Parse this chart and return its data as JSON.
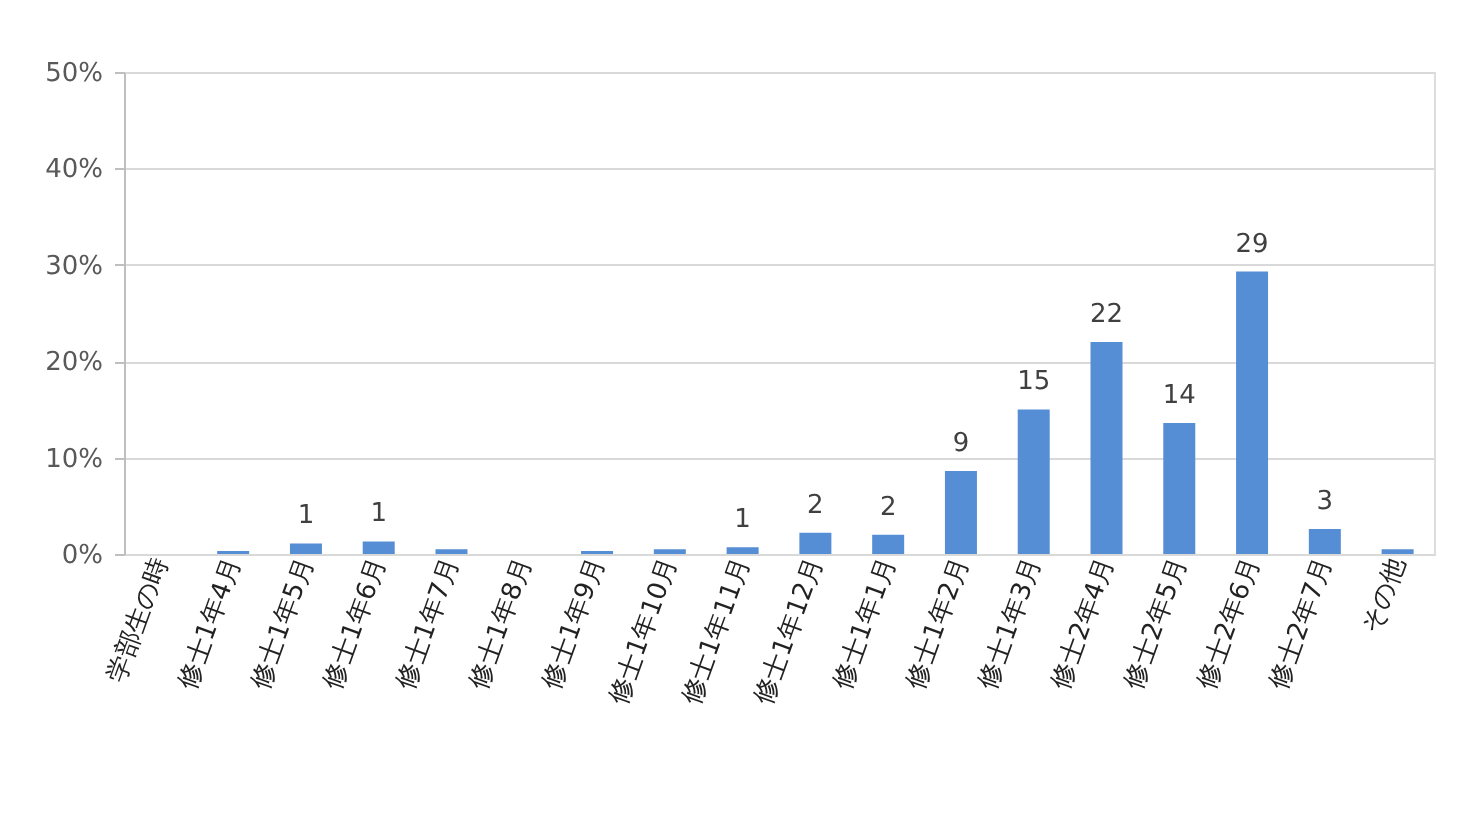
{
  "chart_data": {
    "type": "bar",
    "categories": [
      "学部生の時",
      "修士1年4月",
      "修士1年5月",
      "修士1年6月",
      "修士1年7月",
      "修士1年8月",
      "修士1年9月",
      "修士1年10月",
      "修士1年11月",
      "修士1年12月",
      "修士1年1月",
      "修士1年2月",
      "修士1年3月",
      "修士2年4月",
      "修士2年5月",
      "修士2年6月",
      "修士2年7月",
      "その他"
    ],
    "values": [
      0,
      0.3,
      1.1,
      1.3,
      0.5,
      0,
      0.3,
      0.5,
      0.7,
      2.2,
      2.0,
      8.6,
      15.0,
      22.0,
      13.6,
      29.3,
      2.6,
      0.5
    ],
    "value_labels": [
      null,
      null,
      "1",
      "1",
      null,
      null,
      null,
      null,
      "1",
      "2",
      "2",
      "9",
      "15",
      "22",
      "14",
      "29",
      "3",
      null
    ],
    "color": "#558ed5",
    "ylim": [
      0,
      50
    ],
    "yticks": [
      {
        "value": 0,
        "label": "0%"
      },
      {
        "value": 10,
        "label": "10%"
      },
      {
        "value": 20,
        "label": "20%"
      },
      {
        "value": 30,
        "label": "30%"
      },
      {
        "value": 40,
        "label": "40%"
      },
      {
        "value": 50,
        "label": "50%"
      }
    ],
    "grid": "y"
  }
}
